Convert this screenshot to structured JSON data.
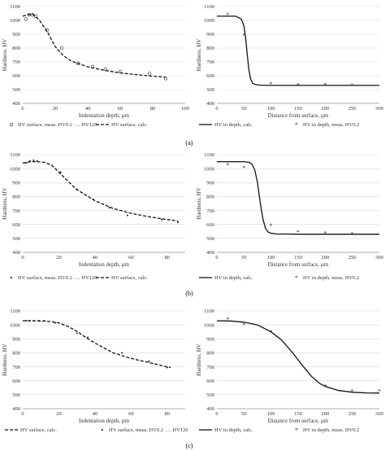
{
  "figure": {
    "panel_labels": [
      "(a)",
      "(b)",
      "(c)"
    ]
  },
  "chart_data": [
    {
      "id": "a-left",
      "type": "line",
      "xlabel": "Indentation depth, µm",
      "ylabel": "Hardness, HV",
      "xlim": [
        0,
        100
      ],
      "ylim": [
        400,
        1100
      ],
      "xticks": [
        0,
        20,
        40,
        60,
        80,
        100
      ],
      "yticks": [
        400,
        500,
        600,
        700,
        800,
        900,
        1000,
        1100
      ],
      "grid": true,
      "series": [
        {
          "name": "HV surface, meas. HV0.2 …. HV120",
          "style": "points",
          "marker": "open-circle",
          "x": [
            2,
            4,
            6,
            8,
            15,
            24,
            34,
            43,
            51,
            60,
            78,
            88
          ],
          "y": [
            1010,
            1040,
            1040,
            1030,
            930,
            800,
            690,
            665,
            645,
            630,
            615,
            580
          ]
        },
        {
          "name": "HV surface, calc.",
          "style": "dashed",
          "x": [
            0,
            3,
            6,
            10,
            15,
            20,
            25,
            30,
            40,
            50,
            60,
            70,
            80,
            88
          ],
          "y": [
            1030,
            1040,
            1045,
            1005,
            920,
            810,
            745,
            705,
            665,
            640,
            620,
            608,
            596,
            590
          ]
        }
      ],
      "legend": "bottom"
    },
    {
      "id": "a-right",
      "type": "line",
      "xlabel": "Distance from surface, µm",
      "ylabel": "Hardness, HV",
      "xlim": [
        0,
        300
      ],
      "ylim": [
        400,
        1100
      ],
      "xticks": [
        0,
        50,
        100,
        150,
        200,
        250,
        300
      ],
      "yticks": [
        400,
        500,
        600,
        700,
        800,
        900,
        1000,
        1100
      ],
      "grid": true,
      "series": [
        {
          "name": "HV in depth, calc.",
          "style": "solid",
          "x": [
            0,
            35,
            45,
            50,
            53,
            56,
            59,
            62,
            66,
            72,
            80,
            100,
            150,
            200,
            250,
            300
          ],
          "y": [
            1030,
            1030,
            1010,
            960,
            880,
            760,
            650,
            580,
            545,
            535,
            532,
            530,
            530,
            530,
            530,
            530
          ]
        },
        {
          "name": "HV in depth, meas. HV0.2",
          "style": "points",
          "marker": "star",
          "x": [
            20,
            50,
            100,
            150,
            200,
            250
          ],
          "y": [
            1040,
            890,
            540,
            530,
            535,
            528
          ]
        }
      ],
      "legend": "bottom"
    },
    {
      "id": "b-left",
      "type": "line",
      "xlabel": "Indentation depth, µm",
      "ylabel": "Hardness, HV",
      "xlim": [
        0,
        90
      ],
      "ylim": [
        400,
        1100
      ],
      "xticks": [
        0,
        20,
        40,
        60,
        80
      ],
      "yticks": [
        400,
        500,
        600,
        700,
        800,
        900,
        1000,
        1100
      ],
      "grid": true,
      "series": [
        {
          "name": "HV surface, meas. HV0.2 …. HV120",
          "style": "points",
          "marker": "dot",
          "x": [
            2,
            4,
            6,
            8,
            21,
            30,
            39,
            48,
            58,
            77,
            86
          ],
          "y": [
            1040,
            1055,
            1060,
            1055,
            975,
            850,
            780,
            720,
            665,
            635,
            615
          ]
        },
        {
          "name": "HV surface, calc.",
          "style": "dashed",
          "x": [
            0,
            4,
            8,
            12,
            16,
            20,
            25,
            30,
            40,
            50,
            60,
            70,
            80,
            86
          ],
          "y": [
            1040,
            1050,
            1050,
            1045,
            1025,
            975,
            910,
            850,
            770,
            715,
            680,
            655,
            635,
            625
          ]
        }
      ],
      "legend": "bottom"
    },
    {
      "id": "b-right",
      "type": "line",
      "xlabel": "Distance from surface, µm",
      "ylabel": "Hardness, HV",
      "xlim": [
        0,
        300
      ],
      "ylim": [
        400,
        1100
      ],
      "xticks": [
        0,
        50,
        100,
        150,
        200,
        250,
        300
      ],
      "yticks": [
        400,
        500,
        600,
        700,
        800,
        900,
        1000,
        1100
      ],
      "grid": true,
      "series": [
        {
          "name": "HV in depth, calc.",
          "style": "solid",
          "x": [
            0,
            50,
            60,
            65,
            70,
            75,
            80,
            85,
            90,
            95,
            100,
            110,
            150,
            200,
            250,
            300
          ],
          "y": [
            1050,
            1050,
            1045,
            1030,
            990,
            900,
            760,
            640,
            570,
            545,
            537,
            532,
            530,
            530,
            530,
            530
          ]
        },
        {
          "name": "HV in depth, meas. HV0.2",
          "style": "points",
          "marker": "star",
          "x": [
            20,
            50,
            100,
            150,
            200,
            250
          ],
          "y": [
            1025,
            1005,
            590,
            545,
            535,
            530
          ]
        }
      ],
      "legend": "bottom"
    },
    {
      "id": "c-left",
      "type": "line",
      "xlabel": "Indentation depth, µm",
      "ylabel": "Hardness, HV",
      "xlim": [
        0,
        90
      ],
      "ylim": [
        400,
        1100
      ],
      "xticks": [
        0,
        20,
        40,
        60,
        80
      ],
      "yticks": [
        400,
        500,
        600,
        700,
        800,
        900,
        1000,
        1100
      ],
      "grid": true,
      "series": [
        {
          "name": "HV surface, calc.",
          "style": "dashed",
          "x": [
            0,
            5,
            10,
            15,
            20,
            25,
            30,
            35,
            40,
            50,
            60,
            70,
            80,
            82
          ],
          "y": [
            1030,
            1030,
            1028,
            1025,
            1015,
            990,
            955,
            910,
            870,
            800,
            760,
            730,
            700,
            695
          ]
        },
        {
          "name": "HV surface, meas. HV0.2 …. HV120",
          "style": "points",
          "marker": "dot",
          "x": [
            2,
            4,
            6,
            9,
            12,
            18,
            30,
            36,
            55,
            70,
            80
          ],
          "y": [
            1030,
            1030,
            1030,
            1030,
            1030,
            1015,
            940,
            910,
            800,
            740,
            695
          ]
        }
      ],
      "legend": "bottom"
    },
    {
      "id": "c-right",
      "type": "line",
      "xlabel": "Distance from surface, µm",
      "ylabel": "Hardness, HV",
      "xlim": [
        0,
        300
      ],
      "ylim": [
        400,
        1100
      ],
      "xticks": [
        0,
        50,
        100,
        150,
        200,
        250,
        300
      ],
      "yticks": [
        400,
        500,
        600,
        700,
        800,
        900,
        1000,
        1100
      ],
      "grid": true,
      "series": [
        {
          "name": "HV in depth, calc.",
          "style": "solid",
          "x": [
            0,
            25,
            50,
            75,
            100,
            120,
            140,
            150,
            160,
            175,
            190,
            200,
            225,
            250,
            275,
            300
          ],
          "y": [
            1030,
            1028,
            1020,
            1000,
            950,
            890,
            800,
            750,
            700,
            630,
            580,
            560,
            530,
            518,
            513,
            512
          ]
        },
        {
          "name": "HV in depth, meas. HV0.2",
          "style": "points",
          "marker": "star",
          "x": [
            20,
            50,
            100,
            200,
            250,
            300
          ],
          "y": [
            1040,
            1000,
            950,
            560,
            525,
            525
          ]
        }
      ],
      "legend": "bottom"
    }
  ]
}
